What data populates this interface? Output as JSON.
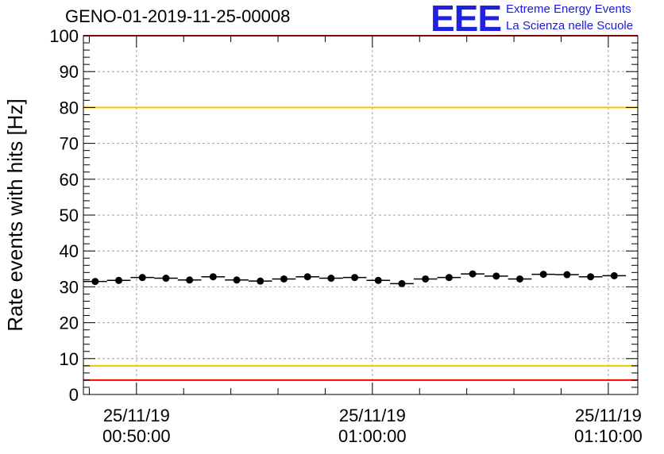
{
  "title": "GENO-01-2019-11-25-00008",
  "logo": {
    "mark": "EEE",
    "line1": "Extreme Energy Events",
    "line2": "La Scienza nelle Scuole"
  },
  "colors": {
    "red_line": "#ff0000",
    "yellow_line": "#f0c800",
    "marker": "#000000",
    "logo_blue": "#2020e0"
  },
  "chart_data": {
    "type": "scatter",
    "ylabel": "Rate events with hits [Hz]",
    "ylim": [
      0,
      100
    ],
    "yticks": [
      0,
      10,
      20,
      30,
      40,
      50,
      60,
      70,
      80,
      90,
      100
    ],
    "xlim": [
      "00:47:45",
      "01:11:15"
    ],
    "xticks": [
      {
        "time": "00:50:00",
        "date": "25/11/19"
      },
      {
        "time": "01:00:00",
        "date": "25/11/19"
      },
      {
        "time": "01:10:00",
        "date": "25/11/19"
      }
    ],
    "grid": true,
    "bin_width_s": 60,
    "points": [
      {
        "x": "00:48:15",
        "y": 31.5
      },
      {
        "x": "00:49:15",
        "y": 31.8
      },
      {
        "x": "00:50:15",
        "y": 32.6
      },
      {
        "x": "00:51:15",
        "y": 32.4
      },
      {
        "x": "00:52:15",
        "y": 31.9
      },
      {
        "x": "00:53:15",
        "y": 32.8
      },
      {
        "x": "00:54:15",
        "y": 31.9
      },
      {
        "x": "00:55:15",
        "y": 31.6
      },
      {
        "x": "00:56:15",
        "y": 32.2
      },
      {
        "x": "00:57:15",
        "y": 32.8
      },
      {
        "x": "00:58:15",
        "y": 32.4
      },
      {
        "x": "00:59:15",
        "y": 32.6
      },
      {
        "x": "01:00:15",
        "y": 31.8
      },
      {
        "x": "01:01:15",
        "y": 30.9
      },
      {
        "x": "01:02:15",
        "y": 32.2
      },
      {
        "x": "01:03:15",
        "y": 32.6
      },
      {
        "x": "01:04:15",
        "y": 33.6
      },
      {
        "x": "01:05:15",
        "y": 33.0
      },
      {
        "x": "01:06:15",
        "y": 32.2
      },
      {
        "x": "01:07:15",
        "y": 33.5
      },
      {
        "x": "01:08:15",
        "y": 33.4
      },
      {
        "x": "01:09:15",
        "y": 32.8
      },
      {
        "x": "01:10:15",
        "y": 33.1
      }
    ],
    "reference_lines": [
      {
        "y": 100,
        "color": "red"
      },
      {
        "y": 80,
        "color": "yellow"
      },
      {
        "y": 8,
        "color": "yellow"
      },
      {
        "y": 4,
        "color": "red"
      }
    ]
  }
}
